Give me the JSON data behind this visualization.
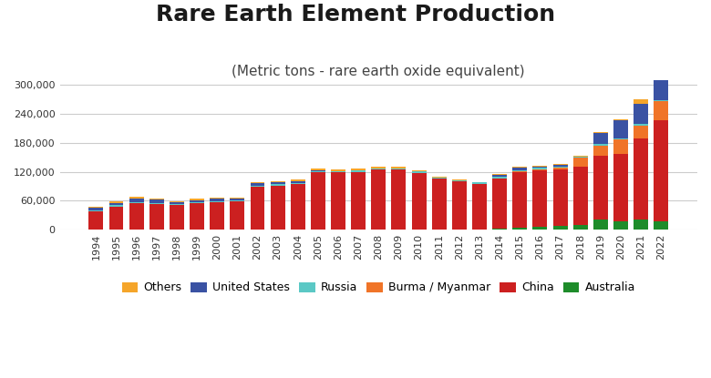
{
  "title": "Rare Earth Element Production",
  "subtitle": "(Metric tons - rare earth oxide equivalent)",
  "years": [
    1994,
    1995,
    1996,
    1997,
    1998,
    1999,
    2000,
    2001,
    2002,
    2003,
    2004,
    2005,
    2006,
    2007,
    2008,
    2009,
    2010,
    2011,
    2012,
    2013,
    2014,
    2015,
    2016,
    2017,
    2018,
    2019,
    2020,
    2021,
    2022
  ],
  "series": {
    "Others": [
      2000,
      3000,
      3500,
      3000,
      2000,
      2500,
      2500,
      2000,
      2500,
      2500,
      3500,
      4000,
      4000,
      4000,
      4000,
      4000,
      3500,
      1500,
      1500,
      1500,
      1500,
      2000,
      2000,
      2000,
      2000,
      2000,
      2000,
      9000,
      4000
    ],
    "United States": [
      5000,
      5000,
      7000,
      7000,
      5000,
      4000,
      5000,
      4500,
      5000,
      4000,
      4000,
      1200,
      0,
      0,
      0,
      0,
      0,
      0,
      0,
      0,
      4000,
      4500,
      3500,
      3000,
      0,
      23000,
      38000,
      43000,
      43000
    ],
    "Russia": [
      2000,
      2000,
      2000,
      2000,
      2000,
      2000,
      2000,
      2000,
      2500,
      2500,
      2500,
      2500,
      2500,
      2500,
      2500,
      2500,
      2500,
      2500,
      2500,
      2500,
      2500,
      2500,
      2500,
      2500,
      2500,
      2500,
      2700,
      2700,
      2700
    ],
    "Burma / Myanmar": [
      0,
      0,
      0,
      0,
      0,
      0,
      0,
      0,
      0,
      0,
      0,
      0,
      0,
      0,
      0,
      0,
      0,
      0,
      0,
      0,
      0,
      1000,
      2500,
      3000,
      19000,
      22000,
      30000,
      26000,
      38000
    ],
    "China": [
      38000,
      48000,
      55000,
      53000,
      50000,
      55000,
      57000,
      58000,
      89000,
      92000,
      95000,
      119000,
      119000,
      120000,
      125000,
      125000,
      118000,
      105000,
      100000,
      95000,
      105000,
      115000,
      117000,
      118000,
      120000,
      132000,
      140000,
      168000,
      210000
    ],
    "Australia": [
      500,
      500,
      500,
      500,
      500,
      500,
      500,
      500,
      0,
      0,
      0,
      0,
      0,
      0,
      0,
      0,
      0,
      500,
      500,
      500,
      2000,
      5000,
      6000,
      8000,
      10000,
      21000,
      17000,
      22000,
      18000
    ]
  },
  "series_colors": {
    "Others": "#f5a52a",
    "United States": "#3a52a3",
    "Russia": "#5bc8c5",
    "Burma / Myanmar": "#f07428",
    "China": "#cc2020",
    "Australia": "#1e8c2a"
  },
  "stack_order": [
    "Australia",
    "China",
    "Burma / Myanmar",
    "Russia",
    "United States",
    "Others"
  ],
  "legend_order": [
    "Others",
    "United States",
    "Russia",
    "Burma / Myanmar",
    "China",
    "Australia"
  ],
  "ylim": [
    0,
    310000
  ],
  "yticks": [
    0,
    60000,
    120000,
    180000,
    240000,
    300000
  ],
  "background_color": "#ffffff",
  "plot_background": "#ffffff",
  "grid_color": "#cccccc",
  "title_fontsize": 18,
  "subtitle_fontsize": 11,
  "tick_fontsize": 8,
  "legend_fontsize": 9
}
